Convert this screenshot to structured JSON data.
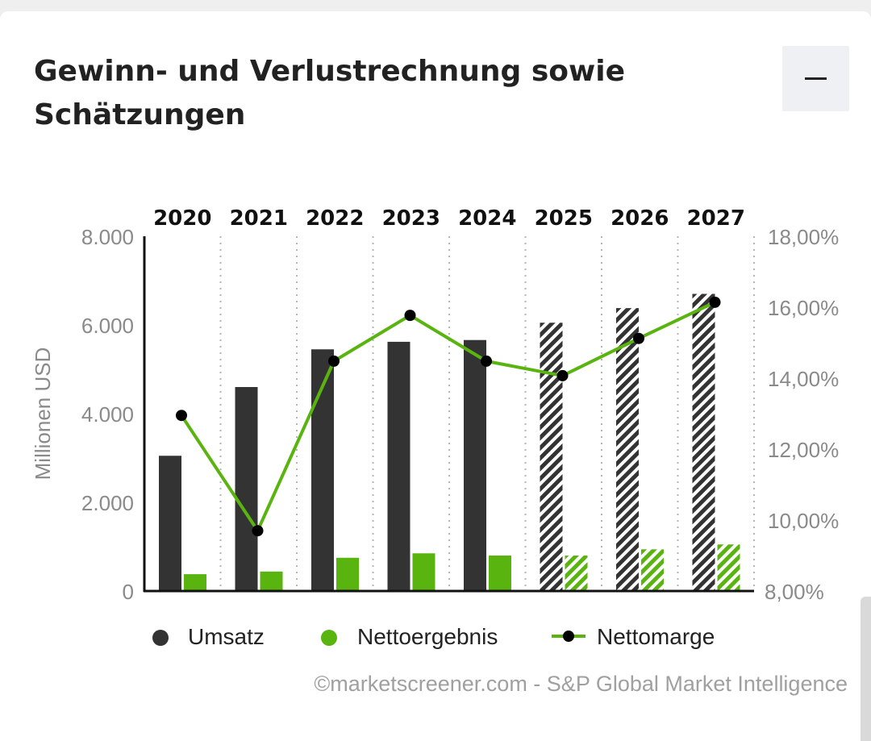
{
  "card": {
    "title": "Gewinn- und Verlustrechnung sowie Schätzungen",
    "collapse_label": "—"
  },
  "colors": {
    "umsatz": "#333333",
    "nettoergebnis": "#5ab410",
    "nettomarge_line": "#5ab410",
    "nettomarge_point": "#000000",
    "axis_text": "#8a8a8a"
  },
  "chart_data": {
    "type": "bar",
    "title": "Gewinn- und Verlustrechnung sowie Schätzungen",
    "categories": [
      "2020",
      "2021",
      "2022",
      "2023",
      "2024",
      "2025",
      "2026",
      "2027"
    ],
    "estimate_from": "2025",
    "ylabel": "Millionen USD",
    "ylim": [
      0,
      8000
    ],
    "yticks": [
      "0",
      "2.000",
      "4.000",
      "6.000",
      "8.000"
    ],
    "y2lim": [
      8,
      18
    ],
    "y2ticks": [
      "8,00%",
      "10,00%",
      "12,00%",
      "14,00%",
      "16,00%",
      "18,00%"
    ],
    "series": [
      {
        "name": "Umsatz",
        "kind": "bar",
        "axis": "left",
        "values": [
          3050,
          4600,
          5450,
          5620,
          5660,
          6050,
          6380,
          6700
        ]
      },
      {
        "name": "Nettoergebnis",
        "kind": "bar",
        "axis": "left",
        "values": [
          380,
          440,
          750,
          850,
          800,
          800,
          940,
          1050
        ]
      },
      {
        "name": "Nettomarge",
        "kind": "line",
        "axis": "right",
        "values": [
          12.95,
          9.7,
          14.48,
          15.77,
          14.48,
          14.07,
          15.12,
          16.14
        ]
      }
    ],
    "legend": [
      "Umsatz",
      "Nettoergebnis",
      "Nettomarge"
    ],
    "legend_position": "bottom",
    "source": "©marketscreener.com - S&P Global Market Intelligence"
  }
}
